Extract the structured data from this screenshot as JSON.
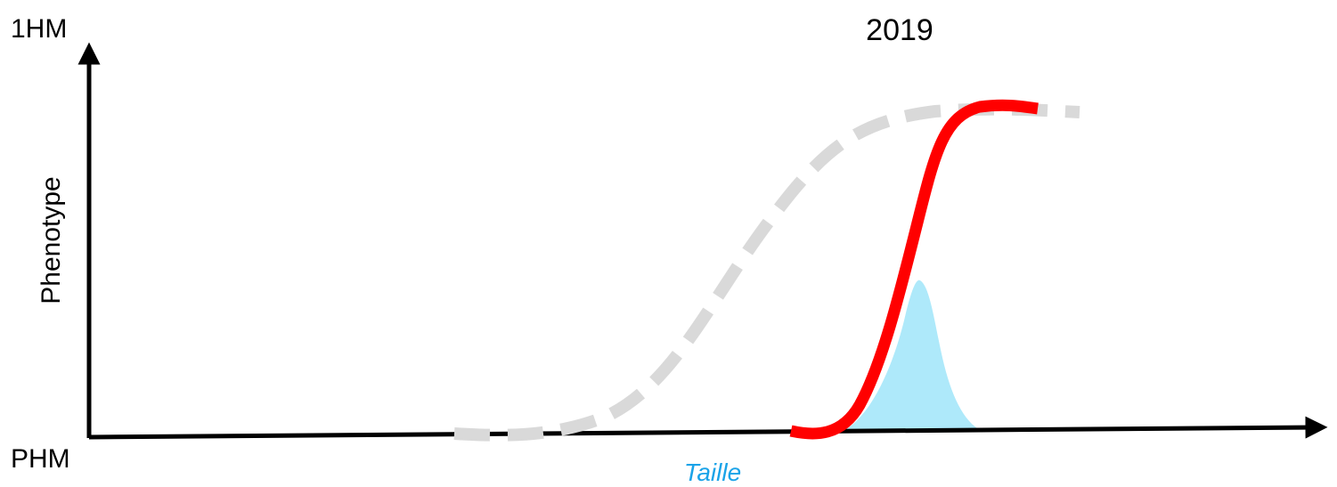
{
  "y_axis": {
    "top_label": "1HM",
    "bottom_label": "PHM",
    "title": "Phenotype"
  },
  "x_axis": {
    "title": "Taille"
  },
  "title": "2019"
}
